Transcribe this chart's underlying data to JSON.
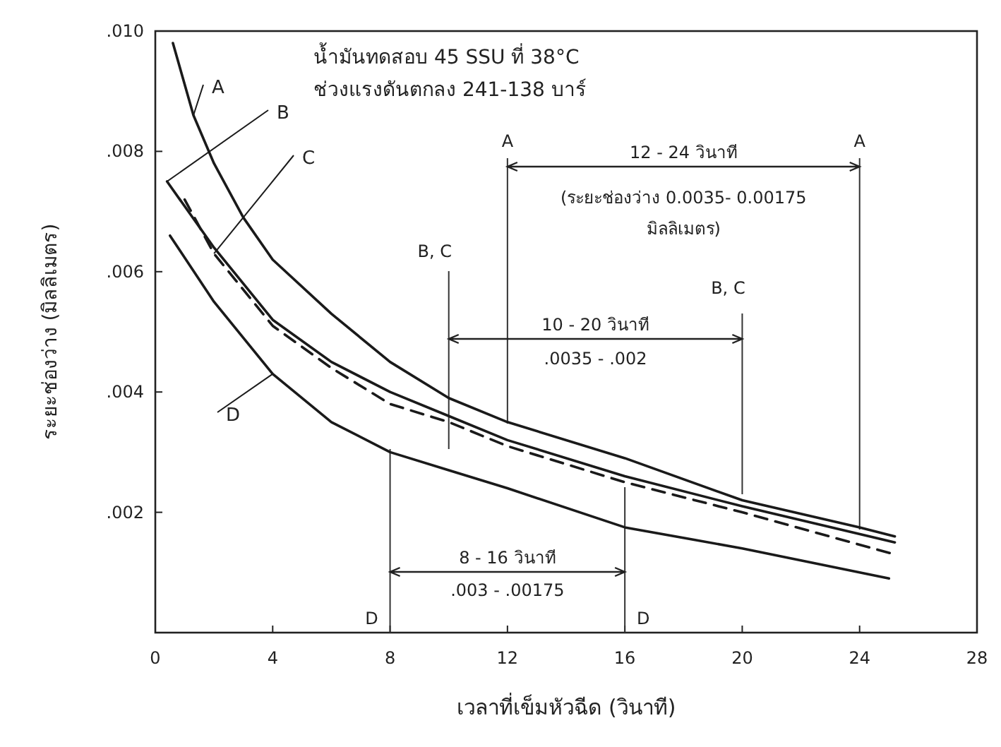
{
  "chart_data": {
    "type": "line",
    "title": "น้ำมันทดสอบ 45 SSU ที่ 38°C",
    "subtitle": "ช่วงแรงดันตกลง 241-138 บาร์",
    "xlabel": "เวลาที่เข็มหัวฉีด (วินาที)",
    "ylabel": "ระยะช่องว่าง (มิลลิเมตร)",
    "xlim": [
      0,
      28
    ],
    "xticks": [
      0,
      4,
      8,
      12,
      16,
      20,
      24,
      28
    ],
    "ylim": [
      0,
      0.01
    ],
    "yticks": [
      {
        "value": 0.002,
        "label": ".002"
      },
      {
        "value": 0.004,
        "label": ".004"
      },
      {
        "value": 0.006,
        "label": ".006"
      },
      {
        "value": 0.008,
        "label": ".008"
      },
      {
        "value": 0.01,
        "label": ".010"
      }
    ],
    "series": [
      {
        "name": "A",
        "color": "#1a1a1a",
        "line_style": "solid",
        "x": [
          0.6,
          1.3,
          2,
          3,
          4,
          6,
          8,
          10,
          12,
          16,
          20,
          24,
          25.2
        ],
        "values": [
          0.0098,
          0.0086,
          0.0078,
          0.0069,
          0.0062,
          0.0053,
          0.0045,
          0.0039,
          0.0035,
          0.0029,
          0.0022,
          0.00175,
          0.0016
        ]
      },
      {
        "name": "B",
        "color": "#1a1a1a",
        "line_style": "solid",
        "x": [
          0.4,
          2,
          4,
          6,
          8,
          10,
          12,
          16,
          20,
          25.2
        ],
        "values": [
          0.0075,
          0.0064,
          0.0052,
          0.0045,
          0.004,
          0.0036,
          0.0032,
          0.0026,
          0.0021,
          0.0015
        ]
      },
      {
        "name": "C",
        "color": "#1a1a1a",
        "line_style": "dashed",
        "x": [
          1,
          2,
          4,
          6,
          8,
          10,
          12,
          16,
          20,
          25.2
        ],
        "values": [
          0.0072,
          0.0063,
          0.0051,
          0.0044,
          0.0038,
          0.0035,
          0.0031,
          0.0025,
          0.002,
          0.0013
        ]
      },
      {
        "name": "D",
        "color": "#1a1a1a",
        "line_style": "solid",
        "x": [
          0.5,
          2,
          4,
          6,
          8,
          10,
          12,
          16,
          20,
          25
        ],
        "values": [
          0.0066,
          0.0055,
          0.0043,
          0.0035,
          0.003,
          0.0027,
          0.0024,
          0.00175,
          0.0014,
          0.0009
        ]
      }
    ],
    "ref_lines": [
      {
        "axis": "x",
        "value": 8,
        "label": "D"
      },
      {
        "axis": "x",
        "value": 10,
        "label": "B, C"
      },
      {
        "axis": "x",
        "value": 12,
        "label": "A"
      },
      {
        "axis": "x",
        "value": 16,
        "label": "D"
      },
      {
        "axis": "x",
        "value": 20,
        "label": "B, C"
      },
      {
        "axis": "x",
        "value": 24,
        "label": "A"
      }
    ],
    "annotations": [
      "12 - 24 วินาที",
      "(ระยะช่องว่าง 0.0035- 0.00175 มิลลิเมตร)",
      "10 - 20 วินาที",
      ".0035 - .002",
      "8 - 16 วินาที",
      ".003 - .00175"
    ]
  }
}
